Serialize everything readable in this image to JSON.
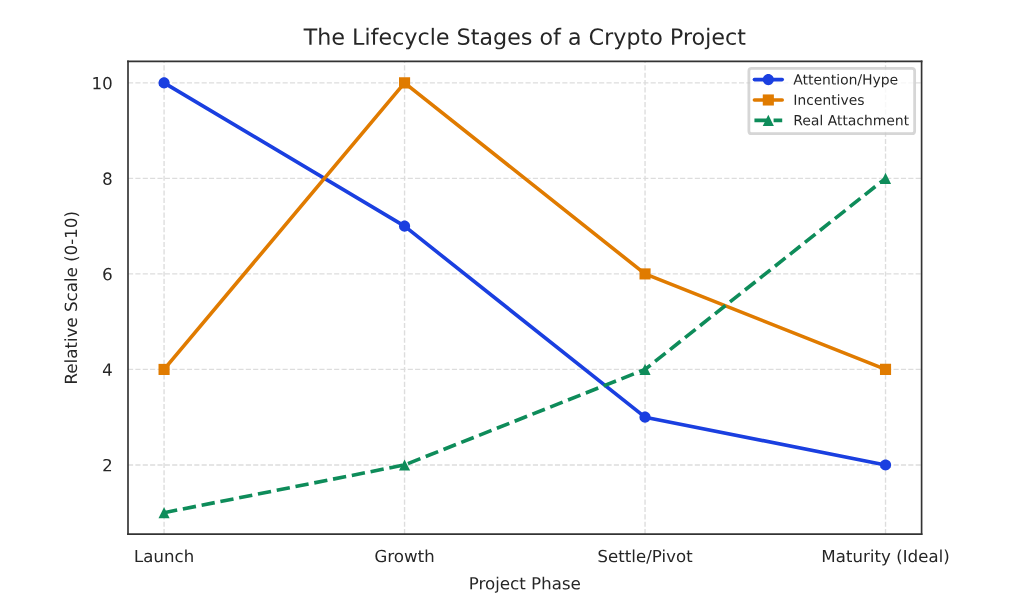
{
  "chart_data": {
    "type": "line",
    "title": "The Lifecycle Stages of a Crypto Project",
    "xlabel": "Project Phase",
    "ylabel": "Relative Scale (0-10)",
    "categories": [
      "Launch",
      "Growth",
      "Settle/Pivot",
      "Maturity (Ideal)"
    ],
    "series": [
      {
        "name": "Attention/Hype",
        "color": "#1a3fe0",
        "values": [
          10,
          7,
          3,
          2
        ],
        "marker": "circle",
        "line_style": "solid"
      },
      {
        "name": "Incentives",
        "color": "#e07b00",
        "values": [
          4,
          10,
          6,
          4
        ],
        "marker": "square",
        "line_style": "solid"
      },
      {
        "name": "Real Attachment",
        "color": "#0e8c5a",
        "values": [
          1,
          2,
          4,
          8
        ],
        "marker": "triangle",
        "line_style": "dashed"
      }
    ],
    "ylim": [
      0.55,
      10.45
    ],
    "yticks": [
      2,
      4,
      6,
      8,
      10
    ],
    "grid": true,
    "legend": "top right"
  }
}
